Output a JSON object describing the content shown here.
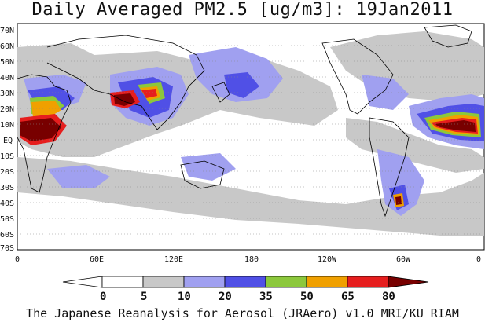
{
  "title": "Daily Averaged PM2.5 [ug/m3]: 19Jan2011",
  "footer": "The Japanese Reanalysis for Aerosol (JRAero) v1.0 MRI/KU_RIAM",
  "lat_labels": [
    "70N",
    "60N",
    "50N",
    "40N",
    "30N",
    "20N",
    "10N",
    "EQ",
    "10S",
    "20S",
    "30S",
    "40S",
    "50S",
    "60S",
    "70S"
  ],
  "lon_labels": [
    "0",
    "60E",
    "120E",
    "180",
    "120W",
    "60W",
    "0"
  ],
  "colorbar": {
    "ticks": [
      "0",
      "5",
      "10",
      "20",
      "35",
      "50",
      "65",
      "80"
    ],
    "colors": [
      "#ffffff",
      "#c8c8c8",
      "#a0a0f0",
      "#5050e6",
      "#8cc83c",
      "#f0a000",
      "#e61e1e",
      "#780000"
    ]
  }
}
